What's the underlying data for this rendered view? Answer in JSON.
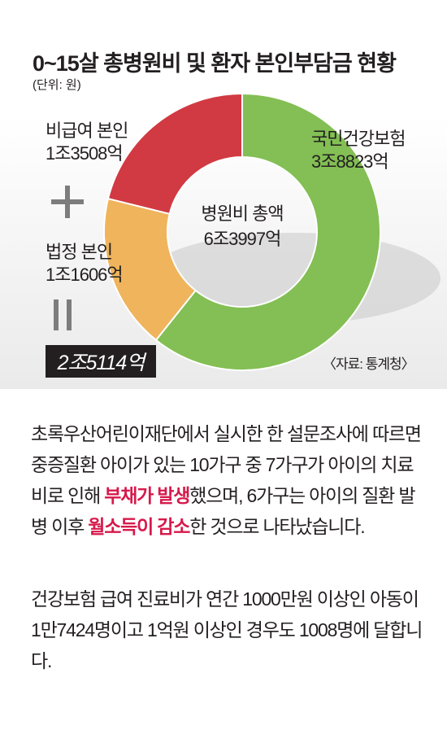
{
  "chart_data": {
    "type": "pie",
    "title": "0~15살 총병원비 및 환자 본인부담금 현황",
    "unit": "(단위: 원)",
    "center_label": "병원비 총액",
    "center_value": "6조3997억",
    "slices": [
      {
        "name": "국민건강보험",
        "label": "3조8823억",
        "value": 38823,
        "color": "#83bf54"
      },
      {
        "name": "법정 본인",
        "label": "1조1606억",
        "value": 11606,
        "color": "#efb45c"
      },
      {
        "name": "비급여 본인",
        "label": "1조3508억",
        "value": 13508,
        "color": "#d13a42"
      }
    ],
    "sum_label": "2조5114억",
    "source": "〈자료: 통계청〉"
  },
  "text": {
    "p1_a": "초록우산어린이재단에서 실시한 한 설문조사에 따르면 중증질환 아이가 있는 10가구 중 7가구가 아이의 치료비로 인해 ",
    "p1_hl1": "부채가 발생",
    "p1_b": "했으며, 6가구는 아이의 질환 발병 이후 ",
    "p1_hl2": "월소득이 감소",
    "p1_c": "한 것으로 나타났습니다.",
    "p2": "건강보험 급여 진료비가 연간 1000만원 이상인 아동이 1만7424명이고 1억원 이상인 경우도 1008명에 달합니다.",
    "highlight_color": "#d7194b"
  }
}
